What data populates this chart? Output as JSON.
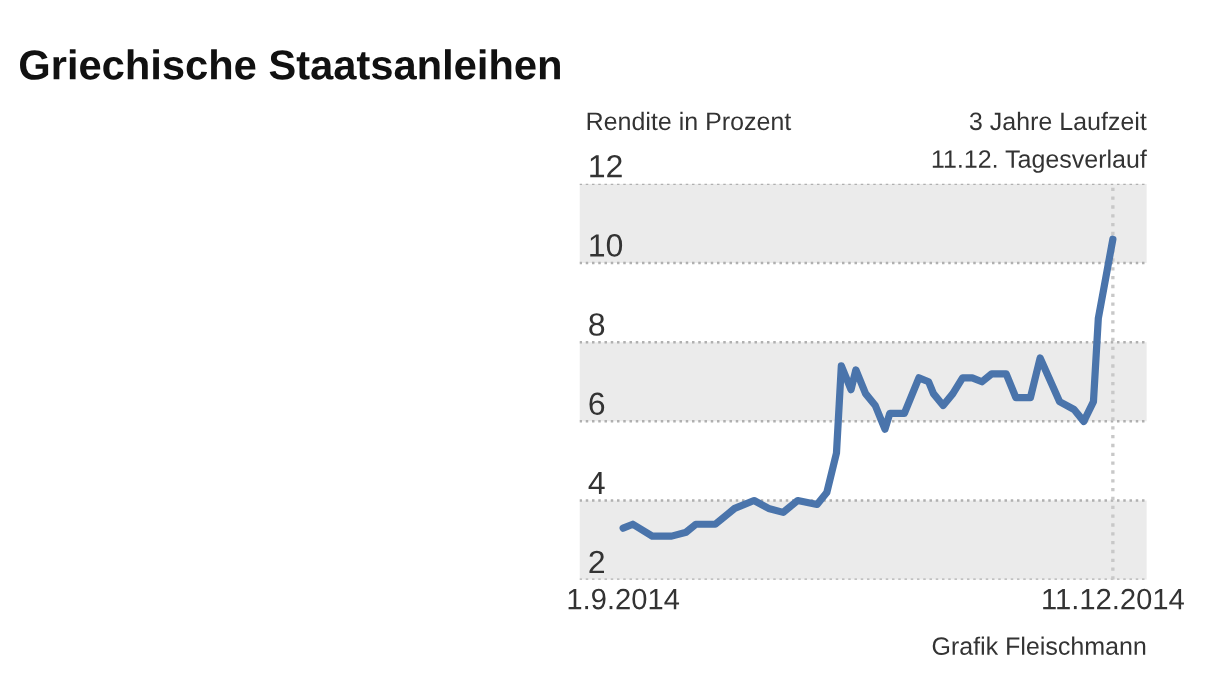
{
  "chart_data": {
    "type": "line",
    "title": "Griechische Staatsanleihen",
    "ylabel": "Rendite in Prozent",
    "annotations": [
      "3 Jahre Laufzeit",
      "11.12. Tagesverlauf",
      "Grafik Fleischmann"
    ],
    "x": [
      "2014-09-01",
      "2014-09-03",
      "2014-09-07",
      "2014-09-11",
      "2014-09-14",
      "2014-09-16",
      "2014-09-20",
      "2014-09-24",
      "2014-09-28",
      "2014-10-01",
      "2014-10-04",
      "2014-10-07",
      "2014-10-11",
      "2014-10-13",
      "2014-10-15",
      "2014-10-16",
      "2014-10-18",
      "2014-10-19",
      "2014-10-21",
      "2014-10-23",
      "2014-10-25",
      "2014-10-26",
      "2014-10-29",
      "2014-11-01",
      "2014-11-03",
      "2014-11-04",
      "2014-11-06",
      "2014-11-08",
      "2014-11-10",
      "2014-11-12",
      "2014-11-14",
      "2014-11-16",
      "2014-11-19",
      "2014-11-21",
      "2014-11-24",
      "2014-11-26",
      "2014-11-30",
      "2014-12-03",
      "2014-12-05",
      "2014-12-07",
      "2014-12-08",
      "2014-12-11"
    ],
    "series": [
      {
        "color": "#4a74ab",
        "values": [
          3.3,
          3.4,
          3.1,
          3.1,
          3.2,
          3.4,
          3.4,
          3.8,
          4.0,
          3.8,
          3.7,
          4.0,
          3.9,
          4.2,
          5.2,
          7.4,
          6.8,
          7.3,
          6.7,
          6.4,
          5.8,
          6.2,
          6.2,
          7.1,
          7.0,
          6.7,
          6.4,
          6.7,
          7.1,
          7.1,
          7.0,
          7.2,
          7.2,
          6.6,
          6.6,
          7.6,
          6.5,
          6.3,
          6.0,
          6.5,
          8.6,
          10.6
        ]
      }
    ],
    "xlim": [
      "2014-08-23",
      "2014-12-18"
    ],
    "ylim": [
      2,
      12
    ],
    "xticks": [
      {
        "value": "2014-09-01",
        "label": "1.9.2014"
      },
      {
        "value": "2014-12-11",
        "label": "11.12.2014"
      }
    ],
    "yticks": [
      2,
      4,
      6,
      8,
      10,
      12
    ],
    "grid": "y",
    "bands": [
      {
        "axis": "y",
        "from": 2,
        "to": 4,
        "color": "#ebebeb"
      },
      {
        "axis": "y",
        "from": 6,
        "to": 8,
        "color": "#ebebeb"
      },
      {
        "axis": "y",
        "from": 10,
        "to": 12,
        "color": "#ebebeb"
      }
    ],
    "ref_lines": [
      {
        "axis": "x",
        "value": "2014-12-11",
        "label": null,
        "color": "#c8c8c8",
        "line_style": "dotted"
      }
    ]
  }
}
